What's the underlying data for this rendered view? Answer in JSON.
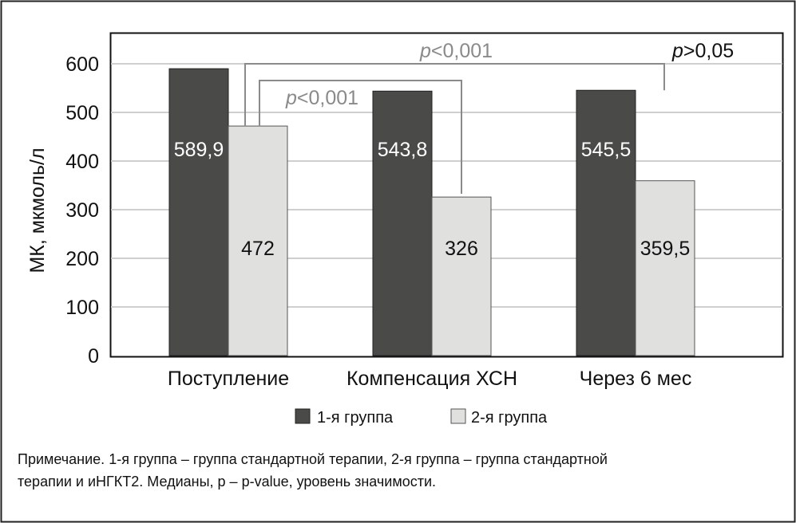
{
  "chart_data": {
    "type": "bar",
    "ylabel": "МК, мкмоль/л",
    "ylim": [
      0,
      600
    ],
    "yticks": [
      0,
      100,
      200,
      300,
      400,
      500,
      600
    ],
    "grid": true,
    "categories": [
      "Поступление",
      "Компенсация ХСН",
      "Через 6 мес"
    ],
    "series": [
      {
        "name": "1-я группа",
        "color": "#4a4a48",
        "values": [
          589.9,
          543.8,
          545.5
        ],
        "labels": [
          "589,9",
          "543,8",
          "545,5"
        ]
      },
      {
        "name": "2-я группа",
        "color": "#e0e0df",
        "values": [
          472,
          326,
          359.5
        ],
        "labels": [
          "472",
          "326",
          "359,5"
        ]
      }
    ],
    "legend_position": "bottom",
    "annotations": [
      {
        "text_italic": "p",
        "text": "<0,001",
        "between": "2-я группа Поступление – 1-я группа Через 6 мес",
        "color": "#8a8a8a"
      },
      {
        "text_italic": "p",
        "text": "<0,001",
        "between": "2-я группа Поступление – 2-я группа Компенсация ХСН",
        "color": "#8a8a8a"
      },
      {
        "text_italic": "p",
        "text": ">0,05",
        "color": "#111111"
      }
    ]
  },
  "note": {
    "line1": "Примечание. 1-я группа – группа стандартной терапии, 2-я группа – группа стандартной",
    "line2": "терапии и иНГКТ2. Медианы, p – p-value, уровень значимости."
  }
}
